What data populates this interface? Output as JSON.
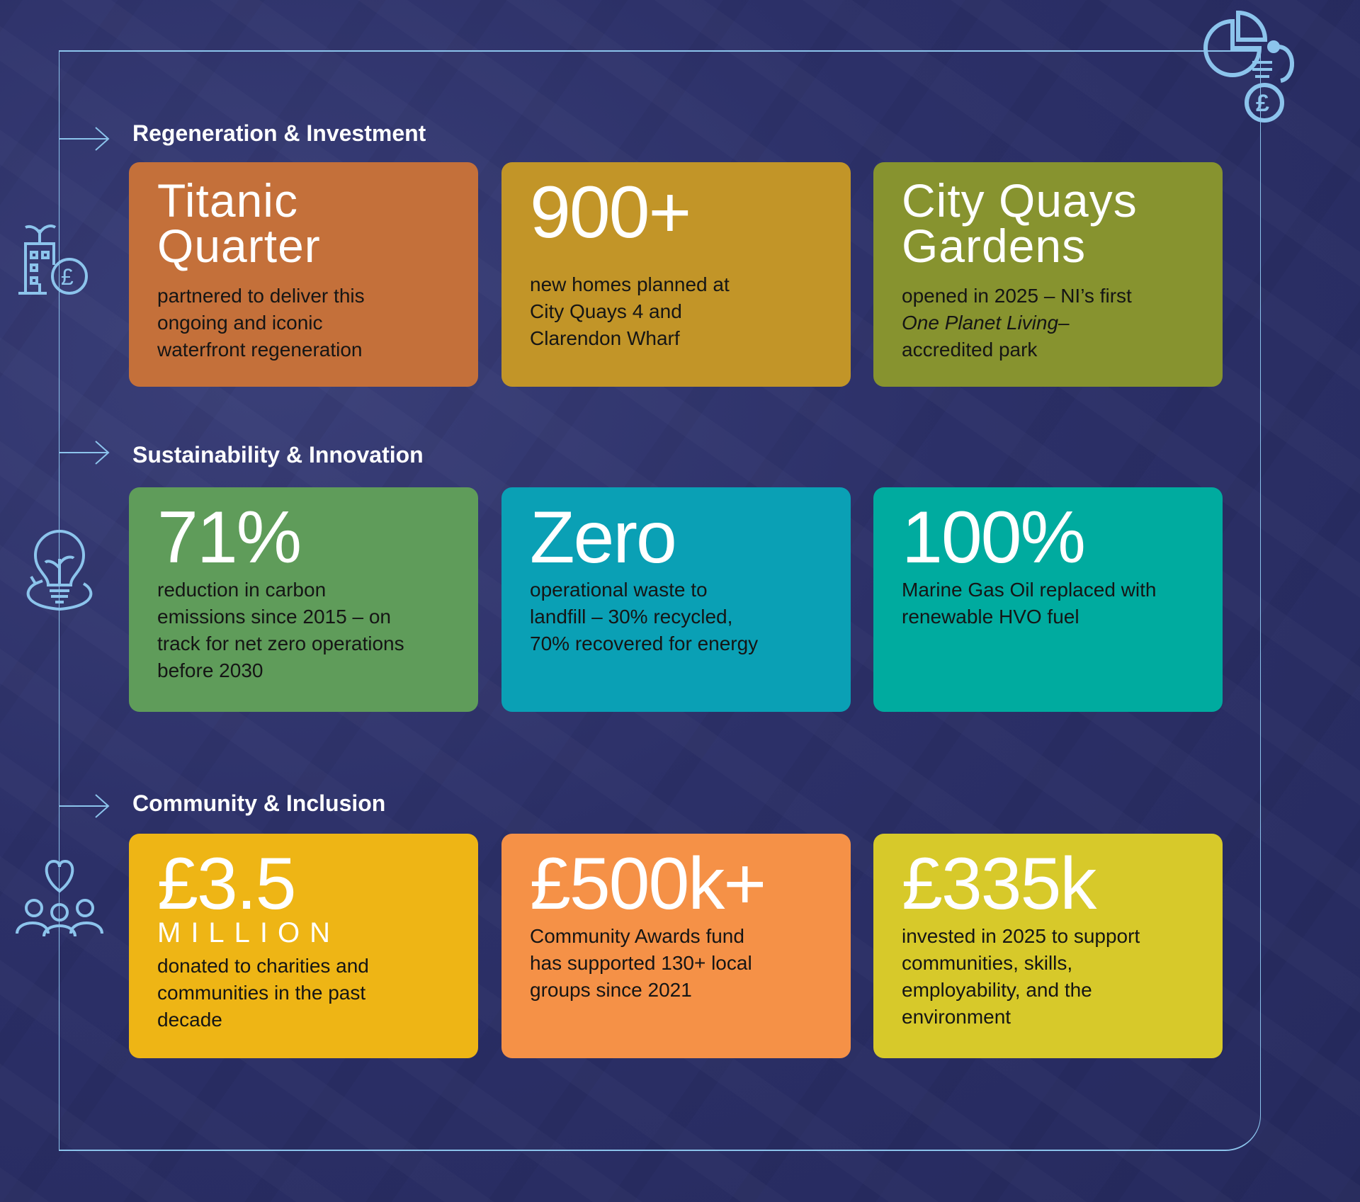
{
  "sections": [
    {
      "title": "Regeneration & Investment",
      "cards": [
        {
          "headline": "Titanic Quarter",
          "text": "partnered to deliver this ongoing and iconic waterfront regeneration",
          "color": "#c4703a"
        },
        {
          "headline": "900+",
          "text": "new homes planned at City Quays 4 and Clarendon Wharf",
          "color": "#c29528"
        },
        {
          "headline": "City Quays Gardens",
          "text_before": "opened in 2025 – NI’s first ",
          "text_italic": "One Planet Living",
          "text_after": "–accredited park",
          "color": "#87932f"
        }
      ]
    },
    {
      "title": "Sustainability & Innovation",
      "cards": [
        {
          "headline": "71%",
          "text": "reduction in carbon emissions since 2015 – on track for net zero operations before 2030",
          "color": "#5f9c5a"
        },
        {
          "headline": "Zero",
          "text": "operational waste to landfill – 30% recycled, 70% recovered for energy",
          "color": "#0aa0b5"
        },
        {
          "headline": "100%",
          "text": "Marine Gas Oil replaced with renewable HVO fuel",
          "color": "#00ab9f"
        }
      ]
    },
    {
      "title": "Community & Inclusion",
      "cards": [
        {
          "headline": "£3.5",
          "subheadline": "MILLION",
          "text": "donated to charities and communities in the past decade",
          "color": "#eeb515"
        },
        {
          "headline": "£500k+",
          "text": "Community Awards fund has supported 130+ local groups since 2021",
          "color": "#f59147"
        },
        {
          "headline": "£335k",
          "text": "invested in 2025 to support communities, skills, employability, and the environment",
          "color": "#d7c92a"
        }
      ]
    }
  ],
  "colors": {
    "line": "#8cc4ec",
    "background": "#2c3068"
  }
}
